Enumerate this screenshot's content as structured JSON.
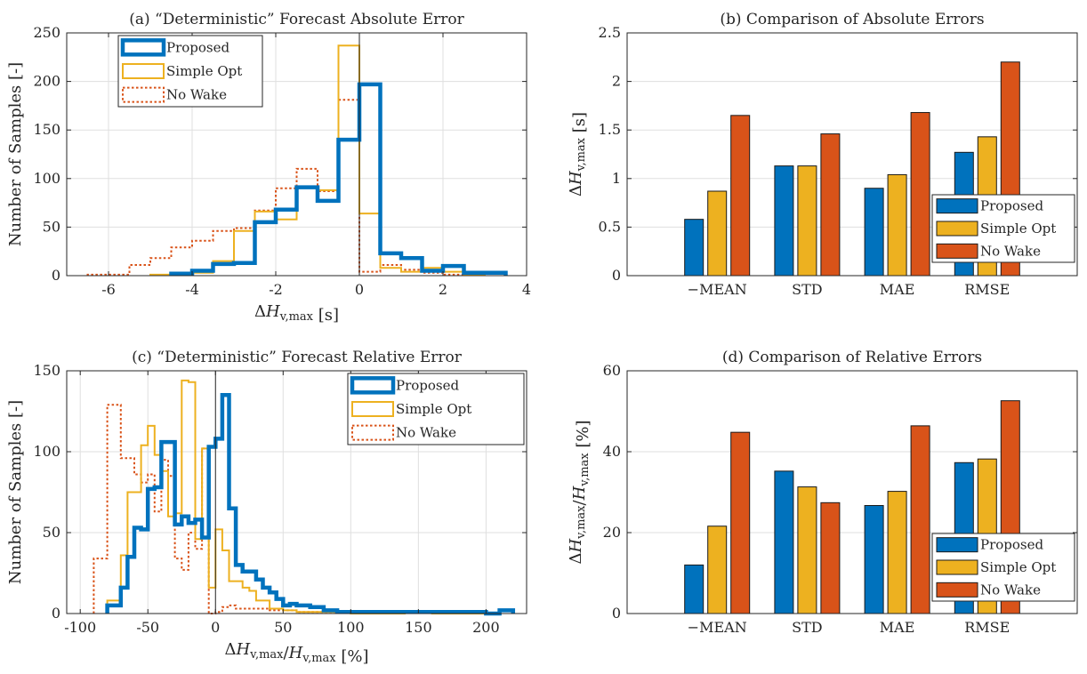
{
  "colors": {
    "proposed": "#0072BD",
    "simple_opt": "#EDB120",
    "no_wake": "#D95319"
  },
  "chart_data": [
    {
      "id": "a",
      "type": "histogram",
      "title": "(a) “Deterministic” Forecast Absolute Error",
      "xlabel": "ΔH_v,max [s]",
      "ylabel": "Number of Samples [-]",
      "xlim": [
        -7,
        4
      ],
      "ylim": [
        0,
        250
      ],
      "xticks": [
        -6,
        -4,
        -2,
        0,
        2,
        4
      ],
      "yticks": [
        0,
        50,
        100,
        150,
        200,
        250
      ],
      "xtick_labels": [
        "-6",
        "-4",
        "-2",
        "0",
        "2",
        "4"
      ],
      "ytick_labels": [
        "0",
        "50",
        "100",
        "150",
        "200",
        "250"
      ],
      "grid": true,
      "legend": "top-left",
      "series": [
        {
          "name": "Proposed",
          "edges": [
            -4.5,
            -4,
            -3.5,
            -3,
            -2.5,
            -2,
            -1.5,
            -1,
            -0.5,
            0,
            0.5,
            1,
            1.5,
            2,
            2.5,
            3,
            3.5
          ],
          "counts": [
            2,
            5,
            12,
            13,
            55,
            68,
            91,
            77,
            140,
            197,
            23,
            18,
            5,
            10,
            3,
            3
          ]
        },
        {
          "name": "Simple Opt",
          "edges": [
            -5,
            -4.5,
            -4,
            -3.5,
            -3,
            -2.5,
            -2,
            -1.5,
            -1,
            -0.5,
            0,
            0.5,
            1,
            1.5,
            2,
            2.5,
            3
          ],
          "counts": [
            1,
            3,
            3,
            15,
            46,
            66,
            58,
            91,
            88,
            237,
            64,
            8,
            4,
            8,
            4,
            1
          ]
        },
        {
          "name": "No Wake",
          "edges": [
            -6.5,
            -6,
            -5.5,
            -5,
            -4.5,
            -4,
            -3.5,
            -3,
            -2.5,
            -2,
            -1.5,
            -1,
            -0.5,
            0,
            0.5,
            1,
            1.5,
            2,
            2.5,
            3
          ],
          "counts": [
            1,
            1,
            11,
            18,
            29,
            36,
            46,
            49,
            67,
            90,
            110,
            87,
            181,
            4,
            11,
            6,
            3,
            1,
            1
          ]
        }
      ]
    },
    {
      "id": "b",
      "type": "bar",
      "title": "(b) Comparison of Absolute Errors",
      "xlabel": "",
      "ylabel": "ΔH_v,max [s]",
      "categories": [
        "−MEAN",
        "STD",
        "MAE",
        "RMSE"
      ],
      "ylim": [
        0,
        2.5
      ],
      "yticks": [
        0,
        0.5,
        1,
        1.5,
        2,
        2.5
      ],
      "ytick_labels": [
        "0",
        "0.5",
        "1",
        "1.5",
        "2",
        "2.5"
      ],
      "grid": true,
      "legend": "lower-right",
      "series": [
        {
          "name": "Proposed",
          "values": [
            0.58,
            1.13,
            0.9,
            1.27
          ]
        },
        {
          "name": "Simple Opt",
          "values": [
            0.87,
            1.13,
            1.04,
            1.43
          ]
        },
        {
          "name": "No Wake",
          "values": [
            1.65,
            1.46,
            1.68,
            2.2
          ]
        }
      ]
    },
    {
      "id": "c",
      "type": "histogram",
      "title": "(c) “Deterministic” Forecast Relative Error",
      "xlabel": "ΔH_v,max/H_v,max [%]",
      "ylabel": "Number of Samples [-]",
      "xlim": [
        -110,
        230
      ],
      "ylim": [
        0,
        150
      ],
      "xticks": [
        -100,
        -50,
        0,
        50,
        100,
        150,
        200
      ],
      "yticks": [
        0,
        50,
        100,
        150
      ],
      "xtick_labels": [
        "-100",
        "-50",
        "0",
        "50",
        "100",
        "150",
        "200"
      ],
      "ytick_labels": [
        "0",
        "50",
        "100",
        "150"
      ],
      "grid": true,
      "legend": "top-right",
      "series": [
        {
          "name": "Proposed",
          "edges": [
            -80,
            -75,
            -70,
            -65,
            -60,
            -55,
            -50,
            -45,
            -40,
            -35,
            -30,
            -25,
            -20,
            -15,
            -10,
            -5,
            0,
            5,
            10,
            15,
            20,
            25,
            30,
            35,
            40,
            45,
            50,
            55,
            60,
            70,
            80,
            90,
            100,
            150,
            160,
            170,
            180,
            190,
            200,
            210,
            215,
            220
          ],
          "counts": [
            5,
            5,
            16,
            35,
            53,
            52,
            77,
            78,
            106,
            106,
            55,
            60,
            56,
            58,
            47,
            103,
            108,
            135,
            65,
            30,
            26,
            26,
            21,
            16,
            13,
            9,
            5,
            6,
            5,
            4,
            2,
            1,
            1,
            1,
            1,
            1,
            1,
            1,
            0,
            2,
            2
          ]
        },
        {
          "name": "Simple Opt",
          "edges": [
            -80,
            -70,
            -65,
            -60,
            -55,
            -50,
            -45,
            -40,
            -35,
            -30,
            -25,
            -20,
            -15,
            -10,
            -5,
            0,
            5,
            10,
            15,
            20,
            25,
            30,
            40,
            50,
            60,
            80,
            100,
            140,
            160,
            180,
            200
          ],
          "counts": [
            8,
            36,
            75,
            75,
            104,
            116,
            98,
            88,
            60,
            62,
            144,
            143,
            46,
            102,
            16,
            52,
            39,
            20,
            20,
            16,
            14,
            8,
            3,
            2,
            1,
            1,
            0,
            1,
            0,
            0
          ]
        },
        {
          "name": "No Wake",
          "edges": [
            -90,
            -80,
            -75,
            -70,
            -65,
            -60,
            -55,
            -50,
            -45,
            -40,
            -35,
            -30,
            -25,
            -20,
            -15,
            -10,
            -5,
            0,
            5,
            10,
            15,
            20,
            30,
            40,
            60,
            80,
            100
          ],
          "counts": [
            34,
            129,
            129,
            96,
            96,
            86,
            81,
            86,
            63,
            95,
            85,
            34,
            27,
            50,
            40,
            102,
            0,
            1,
            4,
            5,
            3,
            3,
            3,
            2,
            1,
            1
          ]
        }
      ]
    },
    {
      "id": "d",
      "type": "bar",
      "title": "(d) Comparison of Relative Errors",
      "xlabel": "",
      "ylabel": "ΔH_v,max/H_v,max [%]",
      "categories": [
        "−MEAN",
        "STD",
        "MAE",
        "RMSE"
      ],
      "ylim": [
        0,
        60
      ],
      "yticks": [
        0,
        20,
        40,
        60
      ],
      "ytick_labels": [
        "0",
        "20",
        "40",
        "60"
      ],
      "grid": true,
      "legend": "lower-right",
      "series": [
        {
          "name": "Proposed",
          "values": [
            12,
            35.2,
            26.7,
            37.3
          ]
        },
        {
          "name": "Simple Opt",
          "values": [
            21.6,
            31.3,
            30.2,
            38.2
          ]
        },
        {
          "name": "No Wake",
          "values": [
            44.8,
            27.4,
            46.4,
            52.6
          ]
        }
      ]
    }
  ]
}
